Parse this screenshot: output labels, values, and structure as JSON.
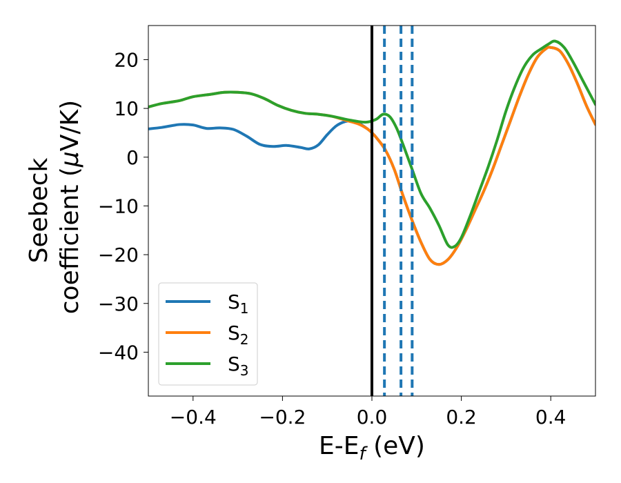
{
  "chart_data": {
    "type": "line",
    "xlabel": "E-E",
    "xlabel_sub": "f",
    "xlabel_unit": " (eV)",
    "ylabel_line1": "Seebeck",
    "ylabel_line2": "coefficient  (",
    "ylabel_mu": "μ",
    "ylabel_unit": "V/K)",
    "xlim": [
      -0.5,
      0.5
    ],
    "ylim": [
      -49,
      27
    ],
    "xticks": [
      -0.4,
      -0.2,
      0.0,
      0.2,
      0.4
    ],
    "xtick_labels": [
      "−0.4",
      "−0.2",
      "0.0",
      "0.2",
      "0.4"
    ],
    "yticks": [
      -40,
      -30,
      -20,
      -10,
      0,
      10,
      20
    ],
    "ytick_labels": [
      "−40",
      "−30",
      "−20",
      "−10",
      "0",
      "10",
      "20"
    ],
    "legend_position": "lower-left",
    "vlines": [
      {
        "x": 0.0,
        "style": "solid",
        "color": "#000000"
      },
      {
        "x": 0.028,
        "style": "dashed",
        "color": "#1f77b4"
      },
      {
        "x": 0.065,
        "style": "dashed",
        "color": "#1f77b4"
      },
      {
        "x": 0.09,
        "style": "dashed",
        "color": "#1f77b4"
      }
    ],
    "series": [
      {
        "name": "S",
        "sub": "1",
        "color": "#1f77b4",
        "points": [
          [
            -0.5,
            5.8
          ],
          [
            -0.47,
            6.1
          ],
          [
            -0.43,
            6.7
          ],
          [
            -0.4,
            6.6
          ],
          [
            -0.37,
            5.9
          ],
          [
            -0.34,
            6.0
          ],
          [
            -0.31,
            5.7
          ],
          [
            -0.28,
            4.3
          ],
          [
            -0.25,
            2.6
          ],
          [
            -0.22,
            2.2
          ],
          [
            -0.19,
            2.4
          ],
          [
            -0.16,
            2.0
          ],
          [
            -0.14,
            1.7
          ],
          [
            -0.12,
            2.5
          ],
          [
            -0.1,
            4.6
          ],
          [
            -0.08,
            6.4
          ],
          [
            -0.06,
            7.3
          ],
          [
            -0.045,
            7.4
          ],
          [
            -0.03,
            7.0
          ],
          [
            -0.01,
            5.8
          ],
          [
            0.0,
            5.0
          ],
          [
            0.01,
            4.0
          ],
          [
            0.03,
            1.5
          ],
          [
            0.05,
            -2.5
          ],
          [
            0.07,
            -8.0
          ],
          [
            0.09,
            -13.0
          ],
          [
            0.11,
            -17.5
          ],
          [
            0.13,
            -21.0
          ],
          [
            0.15,
            -22.0
          ],
          [
            0.17,
            -21.0
          ],
          [
            0.19,
            -18.5
          ],
          [
            0.21,
            -15.0
          ],
          [
            0.23,
            -11.0
          ],
          [
            0.25,
            -7.0
          ],
          [
            0.27,
            -2.5
          ],
          [
            0.29,
            2.5
          ],
          [
            0.31,
            7.5
          ],
          [
            0.33,
            12.5
          ],
          [
            0.35,
            17.0
          ],
          [
            0.37,
            20.5
          ],
          [
            0.39,
            22.3
          ],
          [
            0.4,
            22.5
          ],
          [
            0.42,
            21.8
          ],
          [
            0.44,
            19.0
          ],
          [
            0.46,
            15.0
          ],
          [
            0.48,
            10.5
          ],
          [
            0.5,
            6.7
          ]
        ]
      },
      {
        "name": "S",
        "sub": "2",
        "color": "#ff7f0e",
        "points": [
          [
            -0.5,
            10.3
          ],
          [
            -0.47,
            11.0
          ],
          [
            -0.43,
            11.6
          ],
          [
            -0.4,
            12.4
          ],
          [
            -0.36,
            12.9
          ],
          [
            -0.33,
            13.3
          ],
          [
            -0.3,
            13.3
          ],
          [
            -0.27,
            13.0
          ],
          [
            -0.24,
            12.0
          ],
          [
            -0.21,
            10.6
          ],
          [
            -0.18,
            9.6
          ],
          [
            -0.15,
            9.0
          ],
          [
            -0.12,
            8.8
          ],
          [
            -0.09,
            8.4
          ],
          [
            -0.06,
            7.6
          ],
          [
            -0.03,
            6.8
          ],
          [
            -0.01,
            5.8
          ],
          [
            0.0,
            5.0
          ],
          [
            0.01,
            4.0
          ],
          [
            0.03,
            1.5
          ],
          [
            0.05,
            -2.5
          ],
          [
            0.07,
            -8.0
          ],
          [
            0.09,
            -13.0
          ],
          [
            0.11,
            -17.5
          ],
          [
            0.13,
            -21.0
          ],
          [
            0.15,
            -22.0
          ],
          [
            0.17,
            -21.0
          ],
          [
            0.19,
            -18.5
          ],
          [
            0.21,
            -15.0
          ],
          [
            0.23,
            -11.0
          ],
          [
            0.25,
            -7.0
          ],
          [
            0.27,
            -2.5
          ],
          [
            0.29,
            2.5
          ],
          [
            0.31,
            7.5
          ],
          [
            0.33,
            12.5
          ],
          [
            0.35,
            17.0
          ],
          [
            0.37,
            20.5
          ],
          [
            0.39,
            22.3
          ],
          [
            0.4,
            22.5
          ],
          [
            0.42,
            21.8
          ],
          [
            0.44,
            19.0
          ],
          [
            0.46,
            15.0
          ],
          [
            0.48,
            10.5
          ],
          [
            0.5,
            6.7
          ]
        ]
      },
      {
        "name": "S",
        "sub": "3",
        "color": "#2ca02c",
        "points": [
          [
            -0.5,
            10.3
          ],
          [
            -0.47,
            11.0
          ],
          [
            -0.43,
            11.6
          ],
          [
            -0.4,
            12.4
          ],
          [
            -0.36,
            12.9
          ],
          [
            -0.33,
            13.3
          ],
          [
            -0.3,
            13.3
          ],
          [
            -0.27,
            13.0
          ],
          [
            -0.24,
            12.0
          ],
          [
            -0.21,
            10.6
          ],
          [
            -0.18,
            9.6
          ],
          [
            -0.15,
            9.0
          ],
          [
            -0.12,
            8.8
          ],
          [
            -0.09,
            8.4
          ],
          [
            -0.06,
            7.8
          ],
          [
            -0.03,
            7.3
          ],
          [
            -0.01,
            7.2
          ],
          [
            0.01,
            7.8
          ],
          [
            0.025,
            8.8
          ],
          [
            0.04,
            8.3
          ],
          [
            0.055,
            6.0
          ],
          [
            0.07,
            2.5
          ],
          [
            0.09,
            -2.5
          ],
          [
            0.11,
            -7.5
          ],
          [
            0.13,
            -10.5
          ],
          [
            0.15,
            -14.0
          ],
          [
            0.17,
            -18.0
          ],
          [
            0.185,
            -18.3
          ],
          [
            0.2,
            -16.5
          ],
          [
            0.22,
            -12.0
          ],
          [
            0.24,
            -7.0
          ],
          [
            0.26,
            -2.0
          ],
          [
            0.28,
            3.5
          ],
          [
            0.3,
            9.5
          ],
          [
            0.32,
            14.5
          ],
          [
            0.34,
            18.5
          ],
          [
            0.36,
            21.0
          ],
          [
            0.38,
            22.3
          ],
          [
            0.395,
            23.2
          ],
          [
            0.41,
            23.8
          ],
          [
            0.43,
            22.5
          ],
          [
            0.45,
            19.5
          ],
          [
            0.47,
            16.0
          ],
          [
            0.5,
            10.8
          ]
        ]
      }
    ]
  }
}
